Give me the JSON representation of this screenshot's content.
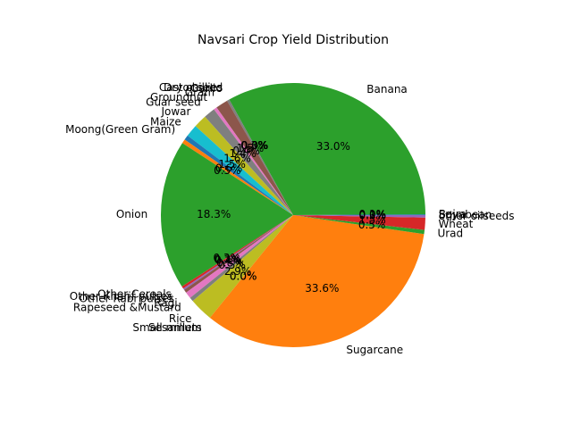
{
  "chart_data": {
    "type": "pie",
    "title": "Navsari Crop Yield Distribution",
    "start_angle_deg": 0,
    "direction": "counterclockwise",
    "slices": [
      {
        "label": "Bajra",
        "value": 0.1,
        "pct_label": "0.1%",
        "color": "#1f77b4"
      },
      {
        "label": "Banana",
        "value": 33.0,
        "pct_label": "33.0%",
        "color": "#2ca02c"
      },
      {
        "label": "Castor seed",
        "value": 0.0,
        "pct_label": "0.0%",
        "color": "#9467bd"
      },
      {
        "label": "Dry chillies",
        "value": 0.0,
        "pct_label": "0.0%",
        "color": "#e377c2"
      },
      {
        "label": "Garlic",
        "value": 0.3,
        "pct_label": "0.3%",
        "color": "#7f7f7f"
      },
      {
        "label": "Gram",
        "value": 1.5,
        "pct_label": "1.5%",
        "color": "#8c564b"
      },
      {
        "label": "Groundnut",
        "value": 0.4,
        "pct_label": "0.4%",
        "color": "#e377c2"
      },
      {
        "label": "Guar seed",
        "value": 1.4,
        "pct_label": "1.4%",
        "color": "#7f7f7f"
      },
      {
        "label": "Jowar",
        "value": 1.6,
        "pct_label": "1.6%",
        "color": "#bcbd22"
      },
      {
        "label": "Maize",
        "value": 1.5,
        "pct_label": "1.5%",
        "color": "#17becf"
      },
      {
        "label": "Moong(Green Gram)",
        "value": 0.6,
        "pct_label": "0.6%",
        "color": "#1f77b4"
      },
      {
        "label": "",
        "value": 0.5,
        "pct_label": "0.5%",
        "color": "#ff7f0e"
      },
      {
        "label": "Onion",
        "value": 18.3,
        "pct_label": "18.3%",
        "color": "#2ca02c"
      },
      {
        "label": "Other Cereals",
        "value": 0.3,
        "pct_label": "0.3%",
        "color": "#d62728"
      },
      {
        "label": "Other Kharif pulses",
        "value": 0.2,
        "pct_label": "0.2%",
        "color": "#9467bd"
      },
      {
        "label": "Other Rabi pulses",
        "value": 0.4,
        "pct_label": "0.4%",
        "color": "#8c564b"
      },
      {
        "label": "Ragi",
        "value": 0.8,
        "pct_label": "0.8%",
        "color": "#e377c2"
      },
      {
        "label": "Rapeseed &Mustard",
        "value": 0.5,
        "pct_label": "0.5%",
        "color": "#7f7f7f"
      },
      {
        "label": "Rice",
        "value": 2.9,
        "pct_label": "2.9%",
        "color": "#bcbd22"
      },
      {
        "label": "Sesamum",
        "value": 0.0,
        "pct_label": "0.0%",
        "color": "#17becf"
      },
      {
        "label": "Small millets",
        "value": 0.0,
        "pct_label": "0.0%",
        "color": "#1f77b4"
      },
      {
        "label": "Sugarcane",
        "value": 33.6,
        "pct_label": "33.6%",
        "color": "#ff7f0e"
      },
      {
        "label": "Urad",
        "value": 0.5,
        "pct_label": "0.5%",
        "color": "#2ca02c"
      },
      {
        "label": "Wheat",
        "value": 1.5,
        "pct_label": "1.5%",
        "color": "#d62728"
      },
      {
        "label": "other oilseeds",
        "value": 0.3,
        "pct_label": "0.3%",
        "color": "#9467bd"
      },
      {
        "label": "Soyabean",
        "value": 0.0,
        "pct_label": "0.0%",
        "color": "#8c564b"
      }
    ]
  }
}
